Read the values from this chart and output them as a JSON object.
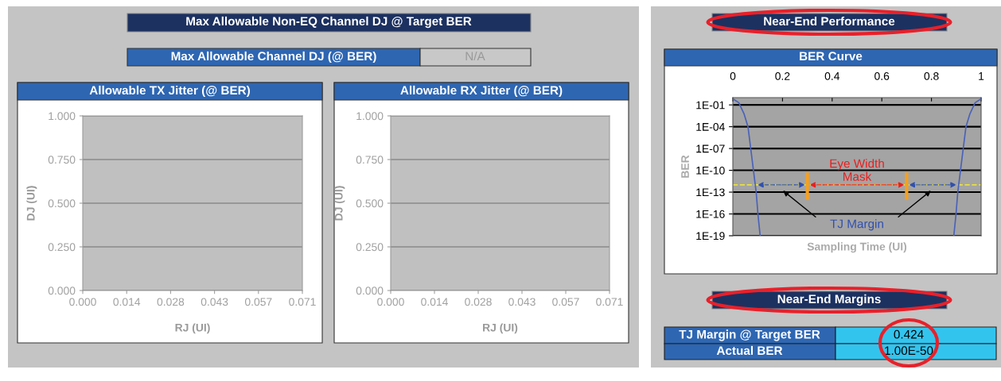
{
  "chart_data": [
    {
      "type": "other",
      "title": "Max Allowable Non-EQ Channel DJ @ Target BER",
      "annotations": [
        "Max Allowable Channel DJ (@ BER)",
        "N/A"
      ]
    },
    {
      "type": "scatter",
      "title": "Allowable TX Jitter (@ BER)",
      "xlabel": "RJ (UI)",
      "ylabel": "DJ (UI)",
      "xlim": [
        0,
        0.071
      ],
      "xticks": [
        {
          "value": 0,
          "label": "0.000"
        },
        {
          "value": 0.0142,
          "label": "0.014"
        },
        {
          "value": 0.0284,
          "label": "0.028"
        },
        {
          "value": 0.0426,
          "label": "0.043"
        },
        {
          "value": 0.0568,
          "label": "0.057"
        },
        {
          "value": 0.071,
          "label": "0.071"
        }
      ],
      "ylim": [
        0,
        1
      ],
      "yticks": [
        {
          "value": 0,
          "label": "0.000"
        },
        {
          "value": 0.25,
          "label": "0.250"
        },
        {
          "value": 0.5,
          "label": "0.500"
        },
        {
          "value": 0.75,
          "label": "0.750"
        },
        {
          "value": 1,
          "label": "1.000"
        }
      ],
      "grid": "y"
    },
    {
      "type": "scatter",
      "title": "Allowable RX Jitter (@ BER)",
      "xlabel": "RJ (UI)",
      "ylabel": "DJ (UI)",
      "xlim": [
        0,
        0.071
      ],
      "xticks": [
        {
          "value": 0,
          "label": "0.000"
        },
        {
          "value": 0.0142,
          "label": "0.014"
        },
        {
          "value": 0.0284,
          "label": "0.028"
        },
        {
          "value": 0.0426,
          "label": "0.043"
        },
        {
          "value": 0.0568,
          "label": "0.057"
        },
        {
          "value": 0.071,
          "label": "0.071"
        }
      ],
      "ylim": [
        0,
        1
      ],
      "yticks": [
        {
          "value": 0,
          "label": "0.000"
        },
        {
          "value": 0.25,
          "label": "0.250"
        },
        {
          "value": 0.5,
          "label": "0.500"
        },
        {
          "value": 0.75,
          "label": "0.750"
        },
        {
          "value": 1,
          "label": "1.000"
        }
      ],
      "grid": "y"
    },
    {
      "type": "line",
      "title": "Near-End Performance",
      "subtitle": "BER Curve",
      "xlabel": "Sampling Time (UI)",
      "ylabel": "BER",
      "log": "y",
      "xlim": [
        0,
        1
      ],
      "xticks": [
        0,
        0.2,
        0.4,
        0.6,
        0.8,
        1
      ],
      "ylim": [
        1e-19,
        1
      ],
      "yticks": [
        {
          "value": 1e-19,
          "label": "1E-19"
        },
        {
          "value": 1e-16,
          "label": "1E-16"
        },
        {
          "value": 1e-13,
          "label": "1E-13"
        },
        {
          "value": 1e-10,
          "label": "1E-10"
        },
        {
          "value": 1e-07,
          "label": "1E-07"
        },
        {
          "value": 0.0001,
          "label": "1E-04"
        },
        {
          "value": 0.1,
          "label": "1E-01"
        }
      ],
      "grid": "y",
      "series": [
        {
          "color": "#4a62b8",
          "x": [
            0,
            0.024,
            0.045,
            0.061,
            0.072,
            0.083,
            0.094,
            0.101,
            0.11
          ],
          "values": [
            0.7,
            0.2,
            0.006,
            0.0001,
            1e-07,
            1e-10,
            1e-13,
            1e-16,
            1e-19
          ]
        },
        {
          "color": "#4a62b8",
          "x": [
            0.89,
            0.899,
            0.906,
            0.917,
            0.928,
            0.939,
            0.955,
            0.976,
            1
          ],
          "values": [
            1e-19,
            1e-16,
            1e-13,
            1e-10,
            1e-07,
            0.0001,
            0.006,
            0.2,
            0.7
          ]
        },
        {
          "color": "#f5a020",
          "x": [
            0.3,
            0.3
          ],
          "values": [
            3e-11,
            1.5e-14
          ]
        },
        {
          "color": "#f5a020",
          "x": [
            0.7,
            0.7
          ],
          "values": [
            3e-11,
            1.5e-14
          ]
        }
      ],
      "ref_lines": [
        {
          "axis": "y",
          "value": 1e-12,
          "color": "#e8e040",
          "line_style": "dashed"
        }
      ],
      "annotations": [
        "Eye Width",
        "Mask",
        "TJ Margin"
      ]
    },
    {
      "type": "other",
      "title": "Near-End Margins",
      "annotations": [
        "TJ Margin @ Target BER",
        "0.424",
        "Actual BER",
        "1.00E-50"
      ]
    }
  ]
}
